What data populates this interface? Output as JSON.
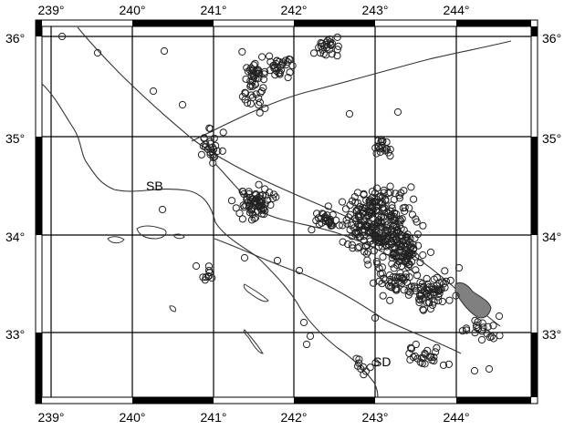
{
  "map": {
    "lon_labels": [
      "239°",
      "240°",
      "241°",
      "242°",
      "243°",
      "244°"
    ],
    "lat_labels": [
      "36°",
      "35°",
      "34°",
      "33°"
    ],
    "place_labels": [
      "SB",
      "SD"
    ],
    "colors": {
      "frame": "#000000",
      "grid": "#000000",
      "lines": "#333333",
      "markers": "#222222",
      "lake": "#808080"
    },
    "icons": {
      "marker": "open-circle"
    }
  }
}
